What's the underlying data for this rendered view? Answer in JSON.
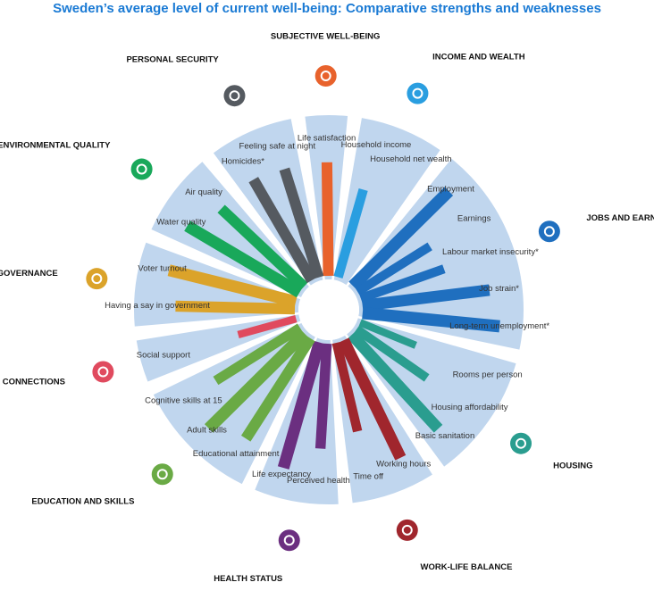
{
  "title": "Sweden’s average level of current well-being: Comparative strengths and weaknesses",
  "chart_data": {
    "type": "bar",
    "layout": "radial",
    "dimensions": [
      {
        "key": "subjective",
        "name": "SUBJECTIVE WELL-BEING",
        "color": "#e8622c",
        "icon": "heart-icon",
        "indicators": [
          {
            "label": "Life satisfaction",
            "value": 0.78
          }
        ]
      },
      {
        "key": "income",
        "name": "INCOME AND WEALTH",
        "color": "#2a9ee0",
        "icon": "money-icon",
        "indicators": [
          {
            "label": "Household income",
            "value": 0.62
          },
          {
            "label": "Household net wealth",
            "value": null
          }
        ]
      },
      {
        "key": "jobs",
        "name": "JOBS AND EARNINGS",
        "color": "#1f6fbf",
        "icon": "briefcase-icon",
        "indicators": [
          {
            "label": "Employment",
            "value": 0.93
          },
          {
            "label": "Earnings",
            "value": 0.58
          },
          {
            "label": "Labour market insecurity*",
            "value": 0.6
          },
          {
            "label": "Job strain*",
            "value": 0.88
          },
          {
            "label": "Long-term unemployment*",
            "value": 0.95
          }
        ]
      },
      {
        "key": "housing",
        "name": "HOUSING",
        "color": "#2a9d8f",
        "icon": "house-icon",
        "indicators": [
          {
            "label": "Rooms per person",
            "value": 0.4
          },
          {
            "label": "Housing affordability",
            "value": 0.58
          },
          {
            "label": "Basic sanitation",
            "value": 0.88
          }
        ]
      },
      {
        "key": "worklife",
        "name": "WORK-LIFE BALANCE",
        "color": "#a0262d",
        "icon": "scales-icon",
        "indicators": [
          {
            "label": "Working hours",
            "value": 0.9
          },
          {
            "label": "Time off",
            "value": 0.62
          }
        ]
      },
      {
        "key": "health",
        "name": "HEALTH STATUS",
        "color": "#6b2f80",
        "icon": "cross-icon",
        "indicators": [
          {
            "label": "Perceived health",
            "value": 0.72
          },
          {
            "label": "Life expectancy",
            "value": 0.9
          }
        ]
      },
      {
        "key": "education",
        "name": "EDUCATION AND SKILLS",
        "color": "#6aaa45",
        "icon": "book-icon",
        "indicators": [
          {
            "label": "Educational attainment",
            "value": 0.82
          },
          {
            "label": "Adult skills",
            "value": 0.93
          },
          {
            "label": "Cognitive skills at 15",
            "value": 0.68
          }
        ]
      },
      {
        "key": "social",
        "name": "SOCIAL CONNECTIONS",
        "color": "#e04a5e",
        "icon": "people-icon",
        "indicators": [
          {
            "label": "Social support",
            "value": 0.4
          }
        ]
      },
      {
        "key": "civic",
        "name": "CIVIC ENGAGEMENT AND GOVERNANCE",
        "color": "#dba32a",
        "icon": "ballot-icon",
        "indicators": [
          {
            "label": "Having a say in government",
            "value": 0.82
          },
          {
            "label": "Voter turnout",
            "value": 0.9
          }
        ]
      },
      {
        "key": "environment",
        "name": "ENVIRONMENTAL QUALITY",
        "color": "#19a85a",
        "icon": "tree-icon",
        "indicators": [
          {
            "label": "Water quality",
            "value": 0.9
          },
          {
            "label": "Air quality",
            "value": 0.78
          }
        ]
      },
      {
        "key": "security",
        "name": "PERSONAL SECURITY",
        "color": "#555a60",
        "icon": "walker-icon",
        "indicators": [
          {
            "label": "Homicides*",
            "value": 0.8
          },
          {
            "label": "Feeling safe at night",
            "value": 0.78
          }
        ]
      }
    ]
  }
}
